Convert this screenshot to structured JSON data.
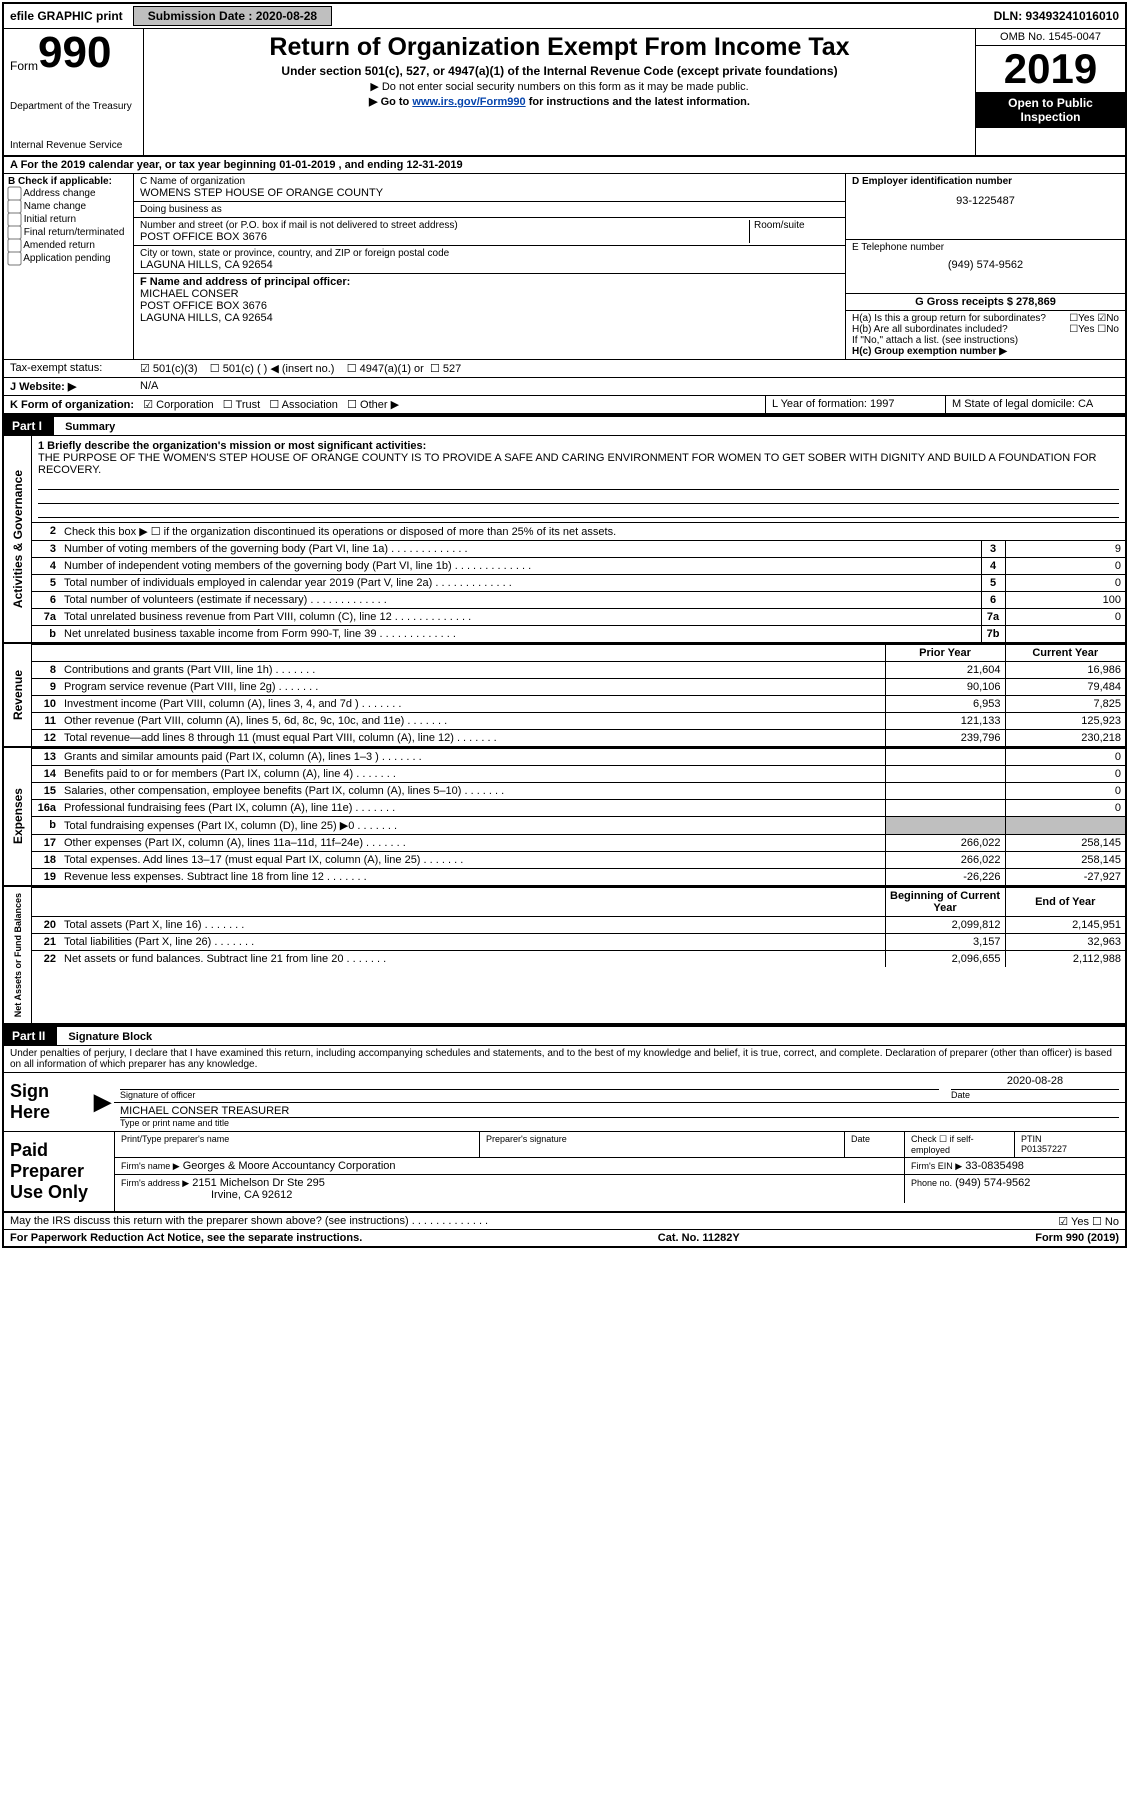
{
  "topbar": {
    "efile": "efile GRAPHIC print",
    "submission_label": "Submission Date : 2020-08-28",
    "dln": "DLN: 93493241016010"
  },
  "header": {
    "form_word": "Form",
    "form_number": "990",
    "dept_treasury": "Department of the Treasury",
    "irs": "Internal Revenue Service",
    "title": "Return of Organization Exempt From Income Tax",
    "subtitle1": "Under section 501(c), 527, or 4947(a)(1) of the Internal Revenue Code (except private foundations)",
    "subtitle2": "▶ Do not enter social security numbers on this form as it may be made public.",
    "subtitle3_pre": "▶ Go to ",
    "subtitle3_link": "www.irs.gov/Form990",
    "subtitle3_post": " for instructions and the latest information.",
    "omb": "OMB No. 1545-0047",
    "year": "2019",
    "open_public": "Open to Public Inspection"
  },
  "periodline": "A For the 2019 calendar year, or tax year beginning 01-01-2019    , and ending 12-31-2019",
  "colB": {
    "header": "B Check if applicable:",
    "items": [
      "Address change",
      "Name change",
      "Initial return",
      "Final return/terminated",
      "Amended return",
      "Application pending"
    ]
  },
  "colC": {
    "name_lbl": "C Name of organization",
    "name": "WOMENS STEP HOUSE OF ORANGE COUNTY",
    "dba_lbl": "Doing business as",
    "dba": "",
    "addr_lbl": "Number and street (or P.O. box if mail is not delivered to street address)",
    "room_lbl": "Room/suite",
    "addr": "POST OFFICE BOX 3676",
    "city_lbl": "City or town, state or province, country, and ZIP or foreign postal code",
    "city": "LAGUNA HILLS, CA  92654",
    "officer_lbl": "F Name and address of principal officer:",
    "officer_name": "MICHAEL CONSER",
    "officer_addr1": "POST OFFICE BOX 3676",
    "officer_addr2": "LAGUNA HILLS, CA  92654"
  },
  "colD": {
    "ein_lbl": "D Employer identification number",
    "ein": "93-1225487",
    "phone_lbl": "E Telephone number",
    "phone": "(949) 574-9562",
    "gross_lbl": "G Gross receipts $ 278,869"
  },
  "H": {
    "ha_lbl": "H(a)  Is this a group return for subordinates?",
    "hb_lbl": "H(b)  Are all subordinates included?",
    "h_note": "If \"No,\" attach a list. (see instructions)",
    "hc_lbl": "H(c)  Group exemption number ▶"
  },
  "taxexempt": {
    "label": "Tax-exempt status:",
    "opt1": "501(c)(3)",
    "opt2": "501(c) (  ) ◀ (insert no.)",
    "opt3": "4947(a)(1) or",
    "opt4": "527"
  },
  "website": {
    "label": "J   Website: ▶",
    "value": "N/A"
  },
  "formorg": {
    "label": "K Form of organization:",
    "opts": [
      "Corporation",
      "Trust",
      "Association",
      "Other ▶"
    ],
    "L_label": "L Year of formation: 1997",
    "M_label": "M State of legal domicile: CA"
  },
  "part1": {
    "label": "Part I",
    "title": "Summary"
  },
  "mission": {
    "q1_lbl": "1  Briefly describe the organization's mission or most significant activities:",
    "text": "THE PURPOSE OF THE WOMEN'S STEP HOUSE OF ORANGE COUNTY IS TO PROVIDE A SAFE AND CARING ENVIRONMENT FOR WOMEN TO GET SOBER WITH DIGNITY AND BUILD A FOUNDATION FOR RECOVERY."
  },
  "activities_side": "Activities & Governance",
  "lines_gov": [
    {
      "n": "2",
      "t": "Check this box ▶ ☐ if the organization discontinued its operations or disposed of more than 25% of its net assets.",
      "box": "",
      "amt": ""
    },
    {
      "n": "3",
      "t": "Number of voting members of the governing body (Part VI, line 1a)",
      "box": "3",
      "amt": "9"
    },
    {
      "n": "4",
      "t": "Number of independent voting members of the governing body (Part VI, line 1b)",
      "box": "4",
      "amt": "0"
    },
    {
      "n": "5",
      "t": "Total number of individuals employed in calendar year 2019 (Part V, line 2a)",
      "box": "5",
      "amt": "0"
    },
    {
      "n": "6",
      "t": "Total number of volunteers (estimate if necessary)",
      "box": "6",
      "amt": "100"
    },
    {
      "n": "7a",
      "t": "Total unrelated business revenue from Part VIII, column (C), line 12",
      "box": "7a",
      "amt": "0"
    },
    {
      "n": "b",
      "t": "Net unrelated business taxable income from Form 990-T, line 39",
      "box": "7b",
      "amt": ""
    }
  ],
  "colheaders": {
    "prior": "Prior Year",
    "current": "Current Year"
  },
  "revenue_side": "Revenue",
  "lines_rev": [
    {
      "n": "8",
      "t": "Contributions and grants (Part VIII, line 1h)",
      "p": "21,604",
      "c": "16,986"
    },
    {
      "n": "9",
      "t": "Program service revenue (Part VIII, line 2g)",
      "p": "90,106",
      "c": "79,484"
    },
    {
      "n": "10",
      "t": "Investment income (Part VIII, column (A), lines 3, 4, and 7d )",
      "p": "6,953",
      "c": "7,825"
    },
    {
      "n": "11",
      "t": "Other revenue (Part VIII, column (A), lines 5, 6d, 8c, 9c, 10c, and 11e)",
      "p": "121,133",
      "c": "125,923"
    },
    {
      "n": "12",
      "t": "Total revenue—add lines 8 through 11 (must equal Part VIII, column (A), line 12)",
      "p": "239,796",
      "c": "230,218"
    }
  ],
  "expenses_side": "Expenses",
  "lines_exp": [
    {
      "n": "13",
      "t": "Grants and similar amounts paid (Part IX, column (A), lines 1–3 )",
      "p": "",
      "c": "0"
    },
    {
      "n": "14",
      "t": "Benefits paid to or for members (Part IX, column (A), line 4)",
      "p": "",
      "c": "0"
    },
    {
      "n": "15",
      "t": "Salaries, other compensation, employee benefits (Part IX, column (A), lines 5–10)",
      "p": "",
      "c": "0"
    },
    {
      "n": "16a",
      "t": "Professional fundraising fees (Part IX, column (A), line 11e)",
      "p": "",
      "c": "0"
    },
    {
      "n": "b",
      "t": "Total fundraising expenses (Part IX, column (D), line 25) ▶0",
      "p": "GREY",
      "c": "GREY"
    },
    {
      "n": "17",
      "t": "Other expenses (Part IX, column (A), lines 11a–11d, 11f–24e)",
      "p": "266,022",
      "c": "258,145"
    },
    {
      "n": "18",
      "t": "Total expenses. Add lines 13–17 (must equal Part IX, column (A), line 25)",
      "p": "266,022",
      "c": "258,145"
    },
    {
      "n": "19",
      "t": "Revenue less expenses. Subtract line 18 from line 12",
      "p": "-26,226",
      "c": "-27,927"
    }
  ],
  "net_side": "Net Assets or Fund Balances",
  "colheaders2": {
    "prior": "Beginning of Current Year",
    "current": "End of Year"
  },
  "lines_net": [
    {
      "n": "20",
      "t": "Total assets (Part X, line 16)",
      "p": "2,099,812",
      "c": "2,145,951"
    },
    {
      "n": "21",
      "t": "Total liabilities (Part X, line 26)",
      "p": "3,157",
      "c": "32,963"
    },
    {
      "n": "22",
      "t": "Net assets or fund balances. Subtract line 21 from line 20",
      "p": "2,096,655",
      "c": "2,112,988"
    }
  ],
  "part2": {
    "label": "Part II",
    "title": "Signature Block"
  },
  "penalties": "Under penalties of perjury, I declare that I have examined this return, including accompanying schedules and statements, and to the best of my knowledge and belief, it is true, correct, and complete. Declaration of preparer (other than officer) is based on all information of which preparer has any knowledge.",
  "sign": {
    "label": "Sign Here",
    "sig_of_officer": "Signature of officer",
    "date_lbl": "Date",
    "date": "2020-08-28",
    "name_title": "MICHAEL CONSER  TREASURER",
    "type_or_print": "Type or print name and title"
  },
  "preparer": {
    "label": "Paid Preparer Use Only",
    "print_name_lbl": "Print/Type preparer's name",
    "sig_lbl": "Preparer's signature",
    "date_lbl": "Date",
    "check_lbl": "Check ☐ if self-employed",
    "ptin_lbl": "PTIN",
    "ptin": "P01357227",
    "firm_name_lbl": "Firm's name    ▶",
    "firm_name": "Georges & Moore Accountancy Corporation",
    "firm_ein_lbl": "Firm's EIN ▶",
    "firm_ein": "33-0835498",
    "firm_addr_lbl": "Firm's address ▶",
    "firm_addr1": "2151 Michelson Dr Ste 295",
    "firm_addr2": "Irvine, CA  92612",
    "phone_lbl": "Phone no.",
    "phone": "(949) 574-9562"
  },
  "discuss": "May the IRS discuss this return with the preparer shown above? (see instructions)",
  "footer": {
    "left": "For Paperwork Reduction Act Notice, see the separate instructions.",
    "mid": "Cat. No. 11282Y",
    "right": "Form 990 (2019)"
  }
}
